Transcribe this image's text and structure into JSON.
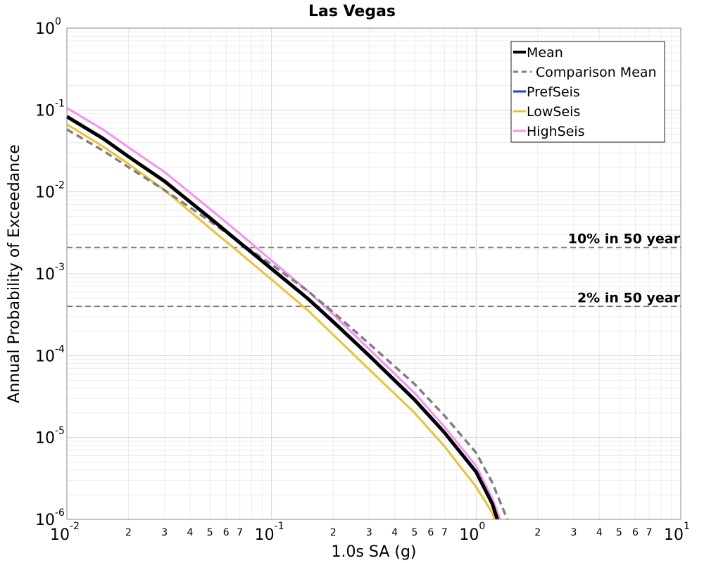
{
  "chart_data": {
    "type": "line",
    "title": "Las Vegas",
    "xlabel": "1.0s SA (g)",
    "ylabel": "Annual Probability of Exceedance",
    "x_scale": "log",
    "y_scale": "log",
    "xlim": [
      0.01,
      10
    ],
    "ylim": [
      1e-06,
      1
    ],
    "grid": true,
    "legend_position": "top-right",
    "x_major_ticks": [
      {
        "base": "10",
        "exp": "-2",
        "value": 0.01
      },
      {
        "base": "10",
        "exp": "-1",
        "value": 0.1
      },
      {
        "base": "10",
        "exp": "0",
        "value": 1
      },
      {
        "base": "10",
        "exp": "1",
        "value": 10
      }
    ],
    "y_major_ticks": [
      {
        "base": "10",
        "exp": "0",
        "value": 1
      },
      {
        "base": "10",
        "exp": "-1",
        "value": 0.1
      },
      {
        "base": "10",
        "exp": "-2",
        "value": 0.01
      },
      {
        "base": "10",
        "exp": "-3",
        "value": 0.001
      },
      {
        "base": "10",
        "exp": "-4",
        "value": 0.0001
      },
      {
        "base": "10",
        "exp": "-5",
        "value": 1e-05
      },
      {
        "base": "10",
        "exp": "-6",
        "value": 1e-06
      }
    ],
    "x_minor_tick_labels": [
      "2",
      "3",
      "4",
      "5",
      "6",
      "7"
    ],
    "reference_lines": [
      {
        "label": "10% in 50 year",
        "y": 0.0021
      },
      {
        "label": "2% in 50 year",
        "y": 0.0004
      }
    ],
    "series": [
      {
        "name": "Mean",
        "color": "#000000",
        "dash": "solid",
        "width": 5,
        "points": [
          [
            0.01,
            0.083
          ],
          [
            0.015,
            0.045
          ],
          [
            0.02,
            0.027
          ],
          [
            0.03,
            0.0135
          ],
          [
            0.05,
            0.0048
          ],
          [
            0.07,
            0.0024
          ],
          [
            0.1,
            0.00115
          ],
          [
            0.15,
            0.0005
          ],
          [
            0.2,
            0.00026
          ],
          [
            0.3,
            0.0001
          ],
          [
            0.5,
            2.9e-05
          ],
          [
            0.7,
            1.15e-05
          ],
          [
            1.0,
            3.8e-06
          ],
          [
            1.2,
            1.55e-06
          ],
          [
            1.27,
            1e-06
          ]
        ]
      },
      {
        "name": "Comparison Mean",
        "color": "#808080",
        "dash": "dashed",
        "width": 3.5,
        "points": [
          [
            0.01,
            0.058
          ],
          [
            0.015,
            0.032
          ],
          [
            0.02,
            0.02
          ],
          [
            0.03,
            0.0105
          ],
          [
            0.05,
            0.0044
          ],
          [
            0.07,
            0.0024
          ],
          [
            0.1,
            0.0013
          ],
          [
            0.15,
            0.00062
          ],
          [
            0.2,
            0.00034
          ],
          [
            0.3,
            0.00014
          ],
          [
            0.5,
            4.5e-05
          ],
          [
            0.7,
            1.85e-05
          ],
          [
            1.0,
            6.5e-06
          ],
          [
            1.2,
            2.8e-06
          ],
          [
            1.42,
            1e-06
          ]
        ]
      },
      {
        "name": "PrefSeis",
        "color": "#1f3fdc",
        "dash": "solid",
        "width": 3,
        "points": []
      },
      {
        "name": "LowSeis",
        "color": "#e9c431",
        "dash": "solid",
        "width": 3,
        "points": [
          [
            0.01,
            0.067
          ],
          [
            0.015,
            0.036
          ],
          [
            0.02,
            0.022
          ],
          [
            0.03,
            0.0105
          ],
          [
            0.05,
            0.0036
          ],
          [
            0.07,
            0.0018
          ],
          [
            0.1,
            0.00085
          ],
          [
            0.15,
            0.00036
          ],
          [
            0.2,
            0.00018
          ],
          [
            0.3,
            6.8e-05
          ],
          [
            0.5,
            2e-05
          ],
          [
            0.7,
            7.8e-06
          ],
          [
            1.0,
            2.5e-06
          ],
          [
            1.2,
            1.2e-06
          ],
          [
            1.23,
            1e-06
          ]
        ]
      },
      {
        "name": "HighSeis",
        "color": "#f591f3",
        "dash": "solid",
        "width": 3,
        "points": [
          [
            0.01,
            0.106
          ],
          [
            0.015,
            0.058
          ],
          [
            0.02,
            0.035
          ],
          [
            0.03,
            0.0175
          ],
          [
            0.05,
            0.0062
          ],
          [
            0.07,
            0.0031
          ],
          [
            0.1,
            0.00145
          ],
          [
            0.15,
            0.00062
          ],
          [
            0.2,
            0.00032
          ],
          [
            0.3,
            0.00012
          ],
          [
            0.5,
            3.5e-05
          ],
          [
            0.7,
            1.35e-05
          ],
          [
            1.0,
            4.5e-06
          ],
          [
            1.2,
            1.8e-06
          ],
          [
            1.31,
            1e-06
          ]
        ]
      }
    ]
  }
}
